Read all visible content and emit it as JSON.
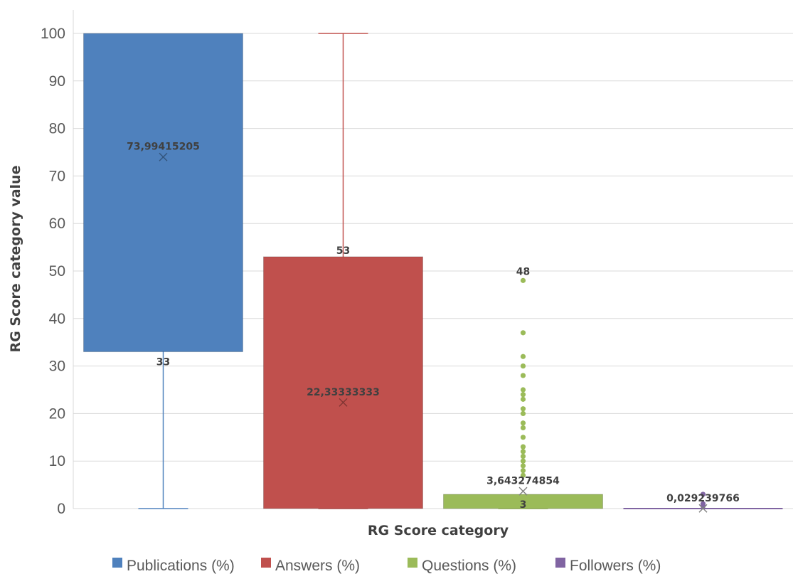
{
  "chart_data": {
    "type": "box",
    "title": "",
    "xlabel": "RG Score category",
    "ylabel": "RG Score category value",
    "ylim": [
      0,
      100
    ],
    "yticks": [
      0,
      10,
      20,
      30,
      40,
      50,
      60,
      70,
      80,
      90,
      100
    ],
    "grid": true,
    "legend_position": "bottom",
    "series": [
      {
        "name": "Publications (%)",
        "color": "#4f81bd",
        "min": 0,
        "q1": 33,
        "median": 100,
        "q3": 100,
        "max": 100,
        "mean": 73.99415205,
        "outliers": [],
        "labels": [
          {
            "text": "73,99415205",
            "value": 73.99415205
          },
          {
            "text": "33",
            "value": 33
          }
        ]
      },
      {
        "name": "Answers (%)",
        "color": "#c0504d",
        "min": 0,
        "q1": 0,
        "median": 0,
        "q3": 53,
        "max": 100,
        "mean": 22.33333333,
        "outliers": [],
        "labels": [
          {
            "text": "53",
            "value": 53
          },
          {
            "text": "22,33333333",
            "value": 22.33333333
          }
        ]
      },
      {
        "name": "Questions (%)",
        "color": "#9bbb59",
        "min": 0,
        "q1": 0,
        "median": 0,
        "q3": 3,
        "max": 3,
        "mean": 3.643274854,
        "outliers": [
          48,
          37,
          32,
          30,
          28,
          25,
          24,
          23,
          21,
          20,
          18,
          17,
          15,
          13,
          12,
          11,
          10,
          9,
          8,
          7
        ],
        "labels": [
          {
            "text": "48",
            "value": 48
          },
          {
            "text": "3,643274854",
            "value": 3.643274854
          },
          {
            "text": "3",
            "value": 3
          }
        ]
      },
      {
        "name": "Followers (%)",
        "color": "#8064a2",
        "min": 0,
        "q1": 0,
        "median": 0,
        "q3": 0,
        "max": 0,
        "mean": 0.029239766,
        "outliers": [
          3,
          1,
          0.5
        ],
        "labels": [
          {
            "text": "0,029239766",
            "value": 0.029239766
          }
        ]
      }
    ]
  }
}
